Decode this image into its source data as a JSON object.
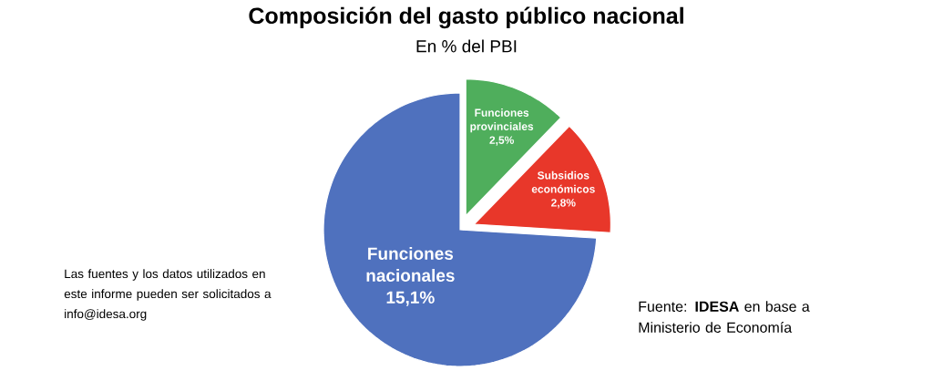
{
  "chart_data": {
    "type": "pie",
    "title": "Composición del gasto público nacional",
    "subtitle": "En % del PBI",
    "categories": [
      "Funciones provinciales",
      "Subsidios económicos",
      "Funciones nacionales"
    ],
    "values": [
      2.5,
      2.8,
      15.1
    ],
    "value_labels": [
      "2,5%",
      "2,8%",
      "15,1%"
    ],
    "colors": [
      "#4fae5c",
      "#e8372a",
      "#4f71be"
    ],
    "annotations": [
      "Las fuentes y los datos utilizados en este informe pueden ser solicitados a info@idesa.org",
      "Fuente: **IDESA** en base a Ministerio de Economía"
    ]
  }
}
